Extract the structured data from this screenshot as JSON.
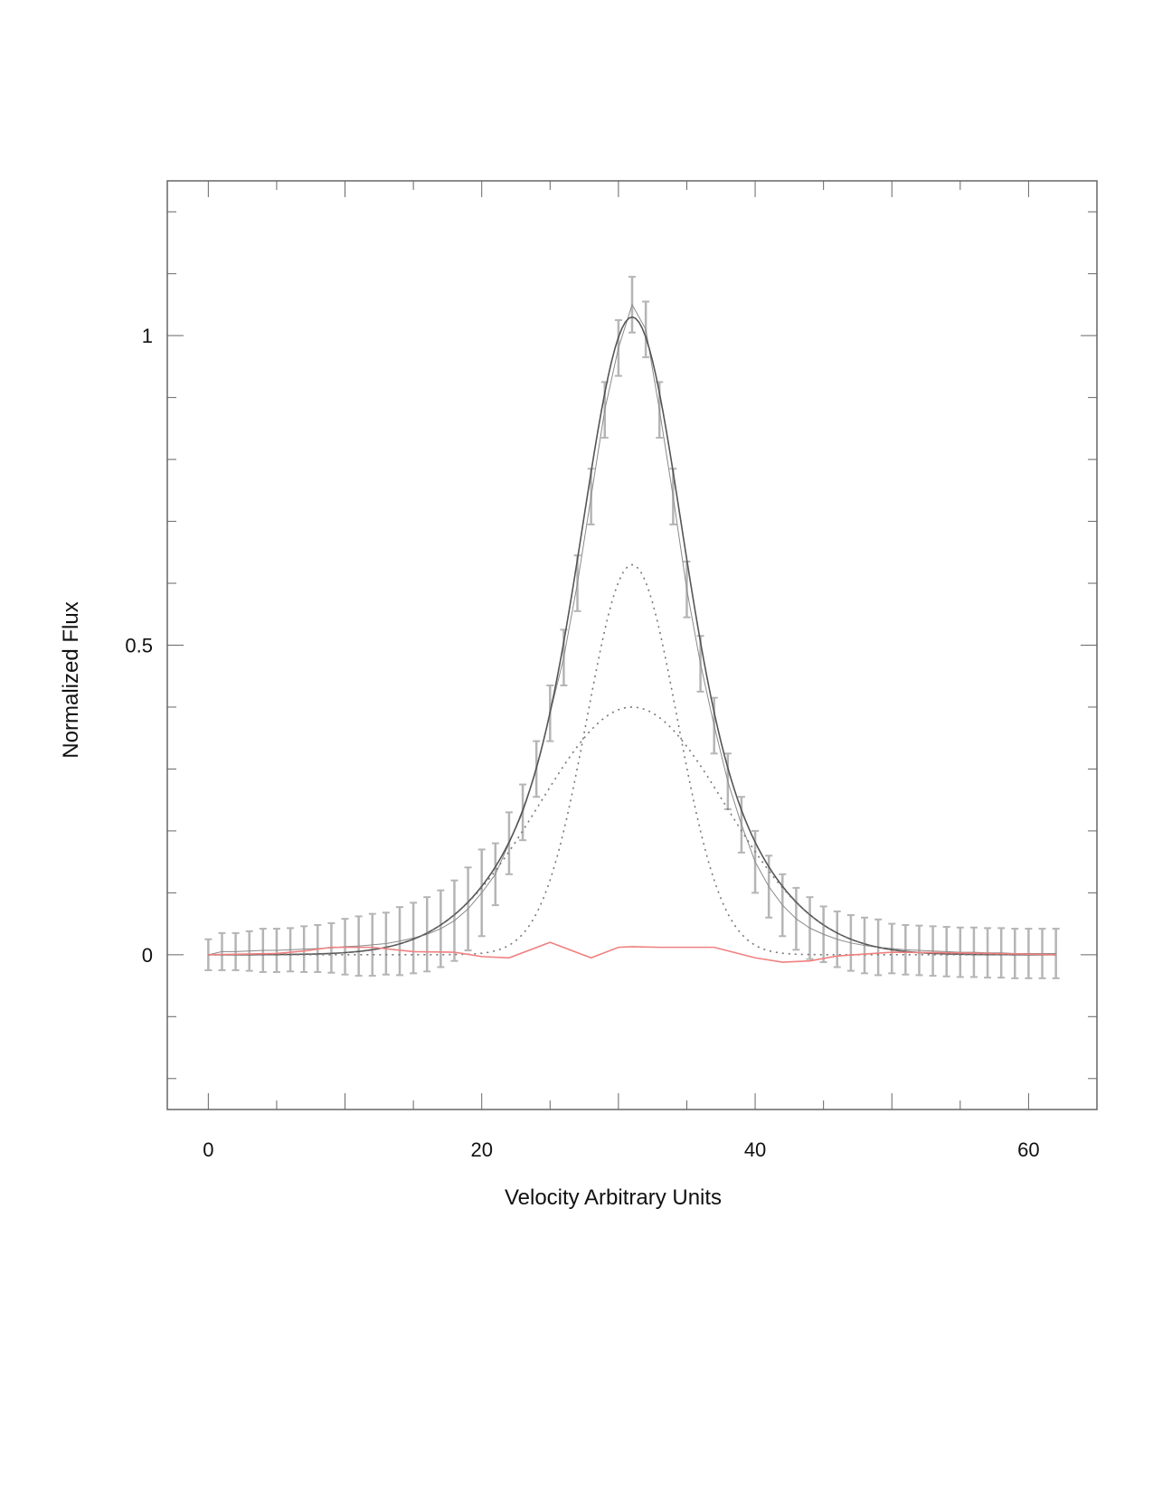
{
  "chart_data": {
    "type": "line",
    "title": "",
    "xlabel": "Velocity Arbitrary Units",
    "ylabel": "Normalized Flux",
    "xlim": [
      -3,
      65
    ],
    "ylim": [
      -0.25,
      1.25
    ],
    "x_ticks": [
      0,
      20,
      40,
      60
    ],
    "x_tick_labels": [
      "0",
      "20",
      "40",
      "60"
    ],
    "y_ticks": [
      0,
      0.5,
      1
    ],
    "y_tick_labels": [
      "0",
      "0.5",
      "1"
    ],
    "grid": false,
    "legend": "none",
    "colors": {
      "data": "#b5b5b5",
      "fit": "#555555",
      "components": "#777777",
      "residual": "#f08080"
    },
    "components": [
      {
        "kind": "narrow gaussian",
        "amplitude": 0.63,
        "center": 31,
        "sigma": 3.3
      },
      {
        "kind": "broad gaussian",
        "amplitude": 0.4,
        "center": 31,
        "sigma": 6.8
      }
    ],
    "series": [
      {
        "style": "data with error bars",
        "x": [
          0,
          1,
          2,
          3,
          4,
          5,
          6,
          7,
          8,
          9,
          10,
          11,
          12,
          13,
          14,
          15,
          16,
          17,
          18,
          19,
          20,
          21,
          22,
          23,
          24,
          25,
          26,
          27,
          28,
          29,
          30,
          31,
          32,
          33,
          34,
          35,
          36,
          37,
          38,
          39,
          40,
          41,
          42,
          43,
          44,
          45,
          46,
          47,
          48,
          49,
          50,
          51,
          52,
          53,
          54,
          55,
          56,
          57,
          58,
          59,
          60,
          61,
          62
        ],
        "y": [
          0.0,
          0.005,
          0.005,
          0.006,
          0.007,
          0.007,
          0.008,
          0.009,
          0.01,
          0.011,
          0.013,
          0.014,
          0.016,
          0.018,
          0.022,
          0.027,
          0.033,
          0.042,
          0.055,
          0.074,
          0.1,
          0.13,
          0.18,
          0.23,
          0.3,
          0.39,
          0.48,
          0.6,
          0.74,
          0.88,
          0.98,
          1.05,
          1.01,
          0.88,
          0.74,
          0.59,
          0.47,
          0.37,
          0.28,
          0.21,
          0.15,
          0.11,
          0.08,
          0.058,
          0.043,
          0.033,
          0.025,
          0.019,
          0.015,
          0.012,
          0.01,
          0.008,
          0.007,
          0.006,
          0.005,
          0.004,
          0.004,
          0.003,
          0.003,
          0.002,
          0.002,
          0.002,
          0.002
        ],
        "error": [
          0.025,
          0.03,
          0.03,
          0.032,
          0.035,
          0.035,
          0.035,
          0.037,
          0.038,
          0.04,
          0.045,
          0.048,
          0.05,
          0.05,
          0.055,
          0.057,
          0.06,
          0.062,
          0.065,
          0.067,
          0.07,
          0.05,
          0.05,
          0.045,
          0.045,
          0.045,
          0.045,
          0.045,
          0.045,
          0.045,
          0.045,
          0.045,
          0.045,
          0.045,
          0.045,
          0.045,
          0.045,
          0.045,
          0.045,
          0.045,
          0.05,
          0.05,
          0.05,
          0.05,
          0.05,
          0.045,
          0.045,
          0.045,
          0.045,
          0.045,
          0.04,
          0.04,
          0.04,
          0.04,
          0.04,
          0.04,
          0.04,
          0.04,
          0.04,
          0.04,
          0.04,
          0.04,
          0.04
        ]
      },
      {
        "style": "solid fit",
        "formula": "sum of components"
      },
      {
        "style": "dotted component",
        "formula": "component 0"
      },
      {
        "style": "dotted component",
        "formula": "component 1"
      },
      {
        "style": "residual",
        "x": [
          0,
          5,
          7,
          9,
          12,
          15,
          18,
          20,
          22,
          25,
          28,
          30,
          31,
          33,
          37,
          40,
          42,
          44,
          46,
          50,
          55,
          60,
          62
        ],
        "y": [
          0.0,
          0.002,
          0.006,
          0.012,
          0.012,
          0.005,
          0.004,
          -0.003,
          -0.005,
          0.02,
          -0.005,
          0.012,
          0.013,
          0.012,
          0.012,
          -0.005,
          -0.012,
          -0.01,
          -0.002,
          0.004,
          0.003,
          0.001,
          0.0
        ]
      }
    ]
  }
}
